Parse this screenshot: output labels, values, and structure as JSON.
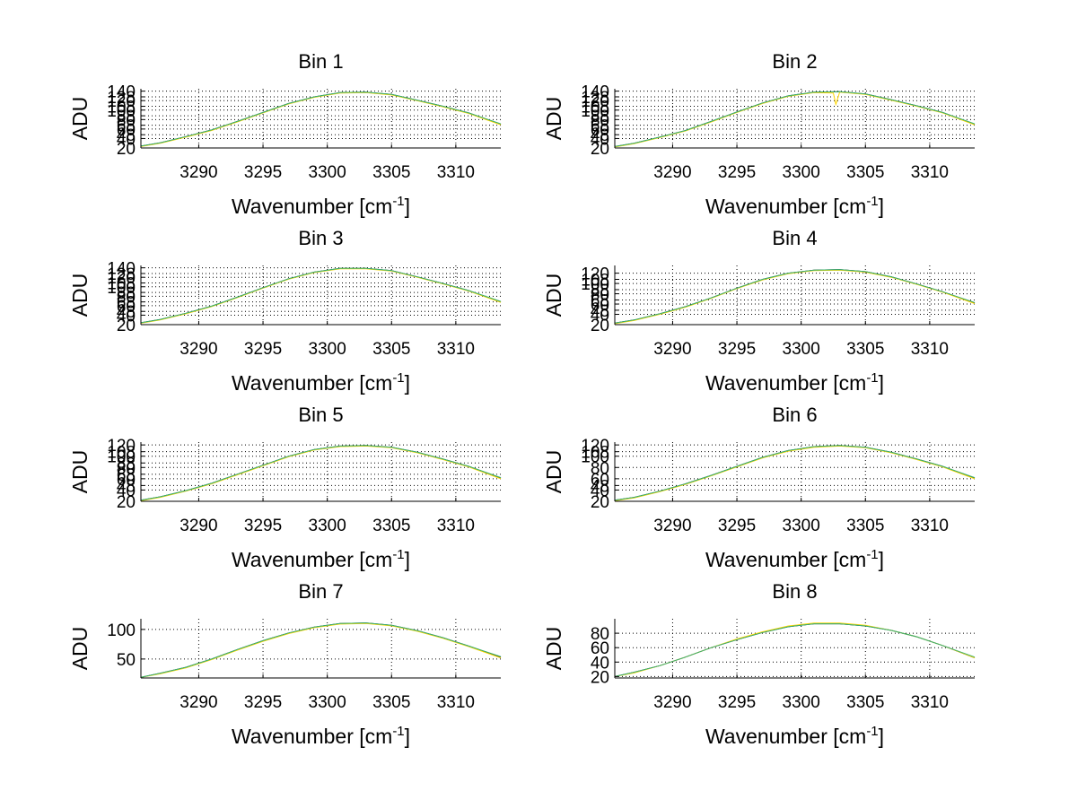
{
  "figure": {
    "background": "#ffffff"
  },
  "chart_data": [
    {
      "type": "line",
      "title": "Bin 1",
      "xlabel": "Wavenumber [cm-1]",
      "ylabel": "ADU",
      "xlim": [
        3285.5,
        3313.5
      ],
      "ylim": [
        20,
        145
      ],
      "xticks": [
        3290,
        3295,
        3300,
        3305,
        3310
      ],
      "yticks": [
        20,
        40,
        48,
        60,
        68,
        80,
        88,
        100,
        108,
        120,
        128,
        140
      ],
      "grid": true,
      "series": [
        {
          "color": "#000000",
          "x": [
            3285.5,
            3287,
            3289,
            3291,
            3293,
            3295,
            3297,
            3299,
            3301,
            3303,
            3305,
            3307,
            3309,
            3311,
            3313.5
          ],
          "values": [
            24,
            31,
            44,
            58,
            76,
            95,
            114,
            128,
            137,
            138,
            133,
            121,
            108,
            94,
            70
          ]
        },
        {
          "color": "#ffd700",
          "x": [
            3285.5,
            3287,
            3289,
            3291,
            3293,
            3295,
            3297,
            3299,
            3301,
            3303,
            3305,
            3307,
            3309,
            3311,
            3313.5
          ],
          "values": [
            23,
            30,
            43,
            57,
            75,
            94,
            113,
            127,
            136,
            137,
            132,
            120,
            107,
            93,
            69
          ]
        },
        {
          "color": "#3cb371",
          "x": [
            3285.5,
            3287,
            3289,
            3291,
            3293,
            3295,
            3297,
            3299,
            3301,
            3303,
            3305,
            3307,
            3309,
            3311,
            3313.5
          ],
          "values": [
            24,
            31,
            44,
            58,
            76,
            95,
            114,
            128,
            137,
            138,
            133,
            121,
            108,
            94,
            71
          ]
        }
      ]
    },
    {
      "type": "line",
      "title": "Bin 2",
      "xlabel": "Wavenumber [cm-1]",
      "ylabel": "ADU",
      "xlim": [
        3285.5,
        3313.5
      ],
      "ylim": [
        20,
        145
      ],
      "xticks": [
        3290,
        3295,
        3300,
        3305,
        3310
      ],
      "yticks": [
        20,
        40,
        48,
        60,
        68,
        80,
        88,
        100,
        108,
        120,
        128,
        140
      ],
      "grid": true,
      "series": [
        {
          "color": "#000000",
          "x": [
            3285.5,
            3287,
            3289,
            3291,
            3293,
            3295,
            3297,
            3299,
            3301,
            3303,
            3305,
            3307,
            3309,
            3311,
            3313.5
          ],
          "values": [
            23,
            30,
            43,
            57,
            76,
            96,
            115,
            130,
            138,
            139,
            134,
            122,
            109,
            95,
            70
          ]
        },
        {
          "color": "#ffd700",
          "x": [
            3285.5,
            3287,
            3289,
            3291,
            3293,
            3295,
            3297,
            3299,
            3301,
            3302.5,
            3302.7,
            3303,
            3305,
            3307,
            3309,
            3311,
            3313.5
          ],
          "values": [
            22,
            29,
            42,
            56,
            75,
            95,
            114,
            129,
            137,
            136,
            112,
            138,
            133,
            121,
            108,
            94,
            69
          ]
        },
        {
          "color": "#3cb371",
          "x": [
            3285.5,
            3287,
            3289,
            3291,
            3293,
            3295,
            3297,
            3299,
            3301,
            3303,
            3305,
            3307,
            3309,
            3311,
            3313.5
          ],
          "values": [
            23,
            30,
            43,
            57,
            76,
            96,
            115,
            130,
            138,
            139,
            134,
            122,
            109,
            95,
            71
          ]
        }
      ]
    },
    {
      "type": "line",
      "title": "Bin 3",
      "xlabel": "Wavenumber [cm-1]",
      "ylabel": "ADU",
      "xlim": [
        3285.5,
        3313.5
      ],
      "ylim": [
        20,
        145
      ],
      "xticks": [
        3290,
        3295,
        3300,
        3305,
        3310
      ],
      "yticks": [
        20,
        40,
        48,
        60,
        68,
        80,
        88,
        100,
        108,
        120,
        128,
        140
      ],
      "grid": true,
      "series": [
        {
          "color": "#000000",
          "x": [
            3285.5,
            3287,
            3289,
            3291,
            3293,
            3295,
            3297,
            3299,
            3301,
            3303,
            3305,
            3307,
            3309,
            3311,
            3313.5
          ],
          "values": [
            24,
            31,
            44,
            59,
            78,
            98,
            117,
            131,
            139,
            139,
            134,
            121,
            107,
            92,
            68
          ]
        },
        {
          "color": "#ffd700",
          "x": [
            3285.5,
            3287,
            3289,
            3291,
            3293,
            3295,
            3297,
            3299,
            3301,
            3303,
            3305,
            3307,
            3309,
            3311,
            3313.5
          ],
          "values": [
            23,
            30,
            43,
            58,
            77,
            97,
            116,
            130,
            138,
            138,
            133,
            120,
            106,
            91,
            67
          ]
        },
        {
          "color": "#3cb371",
          "x": [
            3285.5,
            3287,
            3289,
            3291,
            3293,
            3295,
            3297,
            3299,
            3301,
            3303,
            3305,
            3307,
            3309,
            3311,
            3313.5
          ],
          "values": [
            24,
            31,
            44,
            59,
            78,
            98,
            117,
            131,
            139,
            139,
            134,
            121,
            107,
            92,
            69
          ]
        }
      ]
    },
    {
      "type": "line",
      "title": "Bin 4",
      "xlabel": "Wavenumber [cm-1]",
      "ylabel": "ADU",
      "xlim": [
        3285.5,
        3313.5
      ],
      "ylim": [
        20,
        135
      ],
      "xticks": [
        3290,
        3295,
        3300,
        3305,
        3310
      ],
      "yticks": [
        20,
        40,
        48,
        60,
        68,
        80,
        88,
        100,
        108,
        120
      ],
      "grid": true,
      "series": [
        {
          "color": "#000000",
          "x": [
            3285.5,
            3287,
            3289,
            3291,
            3293,
            3295,
            3297,
            3299,
            3301,
            3303,
            3305,
            3307,
            3309,
            3311,
            3313.5
          ],
          "values": [
            23,
            29,
            41,
            55,
            72,
            91,
            108,
            120,
            126,
            127,
            123,
            113,
            99,
            84,
            62
          ]
        },
        {
          "color": "#ffd700",
          "x": [
            3285.5,
            3287,
            3289,
            3291,
            3293,
            3295,
            3297,
            3299,
            3301,
            3303,
            3305,
            3307,
            3309,
            3311,
            3313.5
          ],
          "values": [
            22,
            28,
            40,
            54,
            71,
            90,
            107,
            119,
            125,
            126,
            122,
            112,
            98,
            83,
            61
          ]
        },
        {
          "color": "#3cb371",
          "x": [
            3285.5,
            3287,
            3289,
            3291,
            3293,
            3295,
            3297,
            3299,
            3301,
            3303,
            3305,
            3307,
            3309,
            3311,
            3313.5
          ],
          "values": [
            23,
            29,
            41,
            55,
            72,
            91,
            108,
            120,
            126,
            127,
            123,
            113,
            99,
            84,
            63
          ]
        }
      ]
    },
    {
      "type": "line",
      "title": "Bin 5",
      "xlabel": "Wavenumber [cm-1]",
      "ylabel": "ADU",
      "xlim": [
        3285.5,
        3313.5
      ],
      "ylim": [
        20,
        125
      ],
      "xticks": [
        3290,
        3295,
        3300,
        3305,
        3310
      ],
      "yticks": [
        20,
        40,
        48,
        60,
        68,
        80,
        88,
        100,
        108,
        120
      ],
      "grid": true,
      "series": [
        {
          "color": "#000000",
          "x": [
            3285.5,
            3287,
            3289,
            3291,
            3293,
            3295,
            3297,
            3299,
            3301,
            3303,
            3305,
            3307,
            3309,
            3311,
            3313.5
          ],
          "values": [
            22,
            28,
            39,
            52,
            68,
            84,
            100,
            112,
            118,
            119,
            116,
            107,
            95,
            82,
            61
          ]
        },
        {
          "color": "#ffd700",
          "x": [
            3285.5,
            3287,
            3289,
            3291,
            3293,
            3295,
            3297,
            3299,
            3301,
            3303,
            3305,
            3307,
            3309,
            3311,
            3313.5
          ],
          "values": [
            21,
            27,
            38,
            51,
            67,
            83,
            99,
            111,
            117,
            118,
            115,
            106,
            94,
            81,
            60
          ]
        },
        {
          "color": "#3cb371",
          "x": [
            3285.5,
            3287,
            3289,
            3291,
            3293,
            3295,
            3297,
            3299,
            3301,
            3303,
            3305,
            3307,
            3309,
            3311,
            3313.5
          ],
          "values": [
            22,
            28,
            39,
            52,
            68,
            84,
            100,
            112,
            118,
            119,
            116,
            107,
            95,
            82,
            62
          ]
        }
      ]
    },
    {
      "type": "line",
      "title": "Bin 6",
      "xlabel": "Wavenumber [cm-1]",
      "ylabel": "ADU",
      "xlim": [
        3285.5,
        3313.5
      ],
      "ylim": [
        20,
        125
      ],
      "xticks": [
        3290,
        3295,
        3300,
        3305,
        3310
      ],
      "yticks": [
        20,
        40,
        48,
        60,
        80,
        100,
        108,
        120
      ],
      "grid": true,
      "series": [
        {
          "color": "#000000",
          "x": [
            3285.5,
            3287,
            3289,
            3291,
            3293,
            3295,
            3297,
            3299,
            3301,
            3303,
            3305,
            3307,
            3309,
            3311,
            3313.5
          ],
          "values": [
            22,
            27,
            38,
            51,
            66,
            82,
            98,
            110,
            117,
            119,
            116,
            107,
            95,
            82,
            61
          ]
        },
        {
          "color": "#ffd700",
          "x": [
            3285.5,
            3287,
            3289,
            3291,
            3293,
            3295,
            3297,
            3299,
            3301,
            3303,
            3305,
            3307,
            3309,
            3311,
            3313.5
          ],
          "values": [
            21,
            26,
            37,
            50,
            65,
            81,
            97,
            109,
            116,
            118,
            115,
            106,
            94,
            81,
            60
          ]
        },
        {
          "color": "#3cb371",
          "x": [
            3285.5,
            3287,
            3289,
            3291,
            3293,
            3295,
            3297,
            3299,
            3301,
            3303,
            3305,
            3307,
            3309,
            3311,
            3313.5
          ],
          "values": [
            22,
            27,
            38,
            51,
            66,
            82,
            98,
            110,
            117,
            119,
            116,
            107,
            95,
            82,
            62
          ]
        }
      ]
    },
    {
      "type": "line",
      "title": "Bin 7",
      "xlabel": "Wavenumber [cm-1]",
      "ylabel": "ADU",
      "xlim": [
        3285.5,
        3313.5
      ],
      "ylim": [
        18,
        118
      ],
      "xticks": [
        3290,
        3295,
        3300,
        3305,
        3310
      ],
      "yticks": [
        50,
        100
      ],
      "grid": true,
      "series": [
        {
          "color": "#000000",
          "x": [
            3285.5,
            3287,
            3289,
            3291,
            3293,
            3295,
            3297,
            3299,
            3301,
            3303,
            3305,
            3307,
            3309,
            3311,
            3313.5
          ],
          "values": [
            19,
            26,
            36,
            50,
            66,
            81,
            94,
            104,
            110,
            111,
            107,
            98,
            86,
            72,
            53
          ]
        },
        {
          "color": "#ffd700",
          "x": [
            3285.5,
            3287,
            3289,
            3291,
            3293,
            3295,
            3297,
            3299,
            3301,
            3303,
            3305,
            3307,
            3309,
            3311,
            3313.5
          ],
          "values": [
            19,
            25,
            35,
            49,
            65,
            80,
            93,
            103,
            109,
            110,
            106,
            97,
            85,
            71,
            52
          ]
        },
        {
          "color": "#3cb371",
          "x": [
            3285.5,
            3287,
            3289,
            3291,
            3293,
            3295,
            3297,
            3299,
            3301,
            3303,
            3305,
            3307,
            3309,
            3311,
            3313.5
          ],
          "values": [
            19,
            26,
            36,
            50,
            66,
            81,
            94,
            104,
            110,
            111,
            107,
            98,
            86,
            72,
            54
          ]
        }
      ]
    },
    {
      "type": "line",
      "title": "Bin 8",
      "xlabel": "Wavenumber [cm-1]",
      "ylabel": "ADU",
      "xlim": [
        3285.5,
        3313.5
      ],
      "ylim": [
        18,
        100
      ],
      "xticks": [
        3290,
        3295,
        3300,
        3305,
        3310
      ],
      "yticks": [
        20,
        40,
        60,
        80
      ],
      "grid": true,
      "series": [
        {
          "color": "#000000",
          "x": [
            3285.5,
            3287,
            3289,
            3291,
            3293,
            3295,
            3297,
            3299,
            3301,
            3303,
            3305,
            3307,
            3309,
            3311,
            3313.5
          ],
          "values": [
            20,
            26,
            35,
            47,
            60,
            71,
            81,
            89,
            93,
            93,
            90,
            84,
            75,
            63,
            46
          ]
        },
        {
          "color": "#ffd700",
          "x": [
            3285.5,
            3287,
            3289,
            3291,
            3293,
            3295,
            3297,
            3299,
            3301,
            3303,
            3305,
            3307,
            3309,
            3311,
            3313.5
          ],
          "values": [
            20,
            25,
            35,
            47,
            60,
            72,
            82,
            90,
            94,
            94,
            91,
            84,
            75,
            63,
            46
          ]
        },
        {
          "color": "#3cb371",
          "x": [
            3285.5,
            3287,
            3289,
            3291,
            3293,
            3295,
            3297,
            3299,
            3301,
            3303,
            3305,
            3307,
            3309,
            3311,
            3313.5
          ],
          "values": [
            20,
            26,
            35,
            47,
            60,
            71,
            81,
            89,
            93,
            93,
            90,
            84,
            75,
            63,
            47
          ]
        }
      ]
    }
  ]
}
